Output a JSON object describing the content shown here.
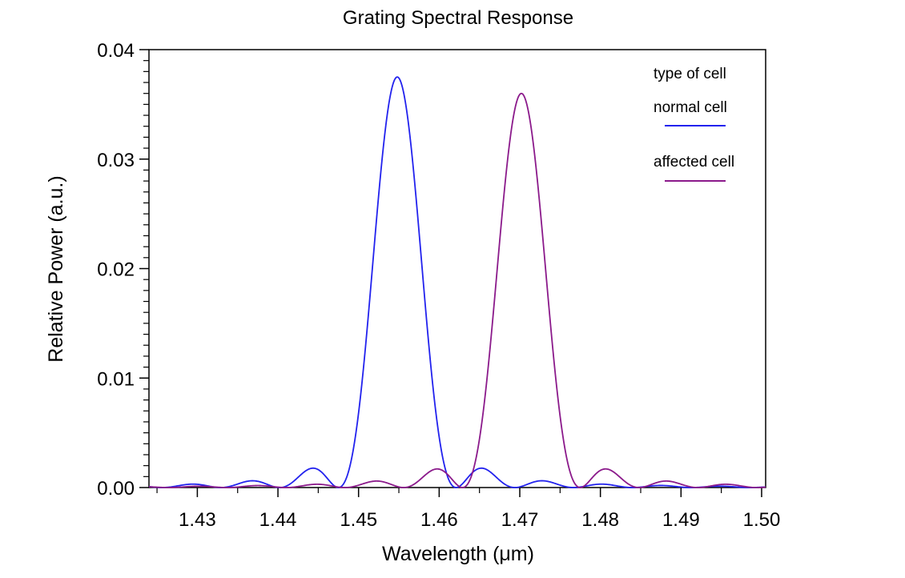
{
  "chart_data": {
    "type": "line",
    "title": "Grating Spectral Response",
    "xlabel": "Wavelength (μm)",
    "ylabel": "Relative Power (a.u.)",
    "xlim": [
      1.424,
      1.5005
    ],
    "ylim": [
      0,
      0.04
    ],
    "xticks": [
      "1.43",
      "1.44",
      "1.45",
      "1.46",
      "1.47",
      "1.48",
      "1.49",
      "1.50"
    ],
    "xtick_values": [
      1.43,
      1.44,
      1.45,
      1.46,
      1.47,
      1.48,
      1.49,
      1.5
    ],
    "yticks": [
      "0.00",
      "0.01",
      "0.02",
      "0.03",
      "0.04"
    ],
    "ytick_values": [
      0,
      0.01,
      0.02,
      0.03,
      0.04
    ],
    "grid": false,
    "legend_position": "top-right",
    "legend_title": "type of cell",
    "series": [
      {
        "name": "normal cell",
        "color": "#2222ee",
        "center": 1.4548,
        "peak": 0.0375,
        "null_spacing": 0.0073,
        "points": [
          [
            1.424,
            5e-05
          ],
          [
            1.4265,
            5e-05
          ],
          [
            1.4284,
            0.00025
          ],
          [
            1.4298,
            0.00035
          ],
          [
            1.4312,
            0.00025
          ],
          [
            1.433,
            2e-05
          ],
          [
            1.4348,
            0.00045
          ],
          [
            1.4364,
            0.00065
          ],
          [
            1.4378,
            0.0005
          ],
          [
            1.44,
            2e-05
          ],
          [
            1.442,
            0.0012
          ],
          [
            1.444,
            0.0019
          ],
          [
            1.4455,
            0.0013
          ],
          [
            1.4475,
            2e-05
          ],
          [
            1.449,
            0.004
          ],
          [
            1.45,
            0.01
          ],
          [
            1.451,
            0.018
          ],
          [
            1.452,
            0.0262
          ],
          [
            1.453,
            0.0328
          ],
          [
            1.454,
            0.0368
          ],
          [
            1.4548,
            0.0375
          ],
          [
            1.4556,
            0.0368
          ],
          [
            1.4566,
            0.0328
          ],
          [
            1.4576,
            0.0262
          ],
          [
            1.4586,
            0.018
          ],
          [
            1.4596,
            0.01
          ],
          [
            1.4606,
            0.004
          ],
          [
            1.4621,
            2e-05
          ],
          [
            1.4641,
            0.0013
          ],
          [
            1.4656,
            0.0018
          ],
          [
            1.4676,
            0.0011
          ],
          [
            1.4694,
            2e-05
          ],
          [
            1.4713,
            0.0005
          ],
          [
            1.4728,
            0.0006
          ],
          [
            1.4745,
            0.0003
          ],
          [
            1.4767,
            2e-05
          ],
          [
            1.4782,
            0.0002
          ],
          [
            1.48,
            0.0003
          ],
          [
            1.4818,
            0.0002
          ],
          [
            1.484,
            2e-05
          ],
          [
            1.487,
            8e-05
          ],
          [
            1.49,
            3e-05
          ],
          [
            1.495,
            8e-05
          ],
          [
            1.5005,
            3e-05
          ]
        ]
      },
      {
        "name": "affected cell",
        "color": "#8b1a8b",
        "center": 1.4702,
        "peak": 0.036,
        "null_spacing": 0.0073,
        "points": [
          [
            1.424,
            2e-05
          ],
          [
            1.437,
            2e-05
          ],
          [
            1.44,
            2e-05
          ],
          [
            1.4415,
            0.00015
          ],
          [
            1.443,
            0.0003
          ],
          [
            1.4445,
            0.00015
          ],
          [
            1.4482,
            2e-05
          ],
          [
            1.45,
            0.0004
          ],
          [
            1.4518,
            0.0006
          ],
          [
            1.4535,
            0.0004
          ],
          [
            1.4555,
            2e-05
          ],
          [
            1.4575,
            0.0012
          ],
          [
            1.4592,
            0.0018
          ],
          [
            1.461,
            0.0012
          ],
          [
            1.4629,
            2e-05
          ],
          [
            1.4644,
            0.0039
          ],
          [
            1.4654,
            0.0096
          ],
          [
            1.4664,
            0.0173
          ],
          [
            1.4674,
            0.0252
          ],
          [
            1.4684,
            0.0316
          ],
          [
            1.4694,
            0.0353
          ],
          [
            1.4702,
            0.036
          ],
          [
            1.471,
            0.0353
          ],
          [
            1.472,
            0.0316
          ],
          [
            1.473,
            0.0252
          ],
          [
            1.474,
            0.0173
          ],
          [
            1.475,
            0.0096
          ],
          [
            1.476,
            0.0039
          ],
          [
            1.4775,
            2e-05
          ],
          [
            1.4793,
            0.0012
          ],
          [
            1.481,
            0.0017
          ],
          [
            1.4828,
            0.0011
          ],
          [
            1.4848,
            2e-05
          ],
          [
            1.4866,
            0.0004
          ],
          [
            1.4884,
            0.0006
          ],
          [
            1.4902,
            0.0004
          ],
          [
            1.4921,
            2e-05
          ],
          [
            1.494,
            0.0002
          ],
          [
            1.4958,
            0.0003
          ],
          [
            1.4976,
            0.0002
          ],
          [
            1.4994,
            2e-05
          ],
          [
            1.5005,
            5e-05
          ]
        ]
      }
    ]
  }
}
